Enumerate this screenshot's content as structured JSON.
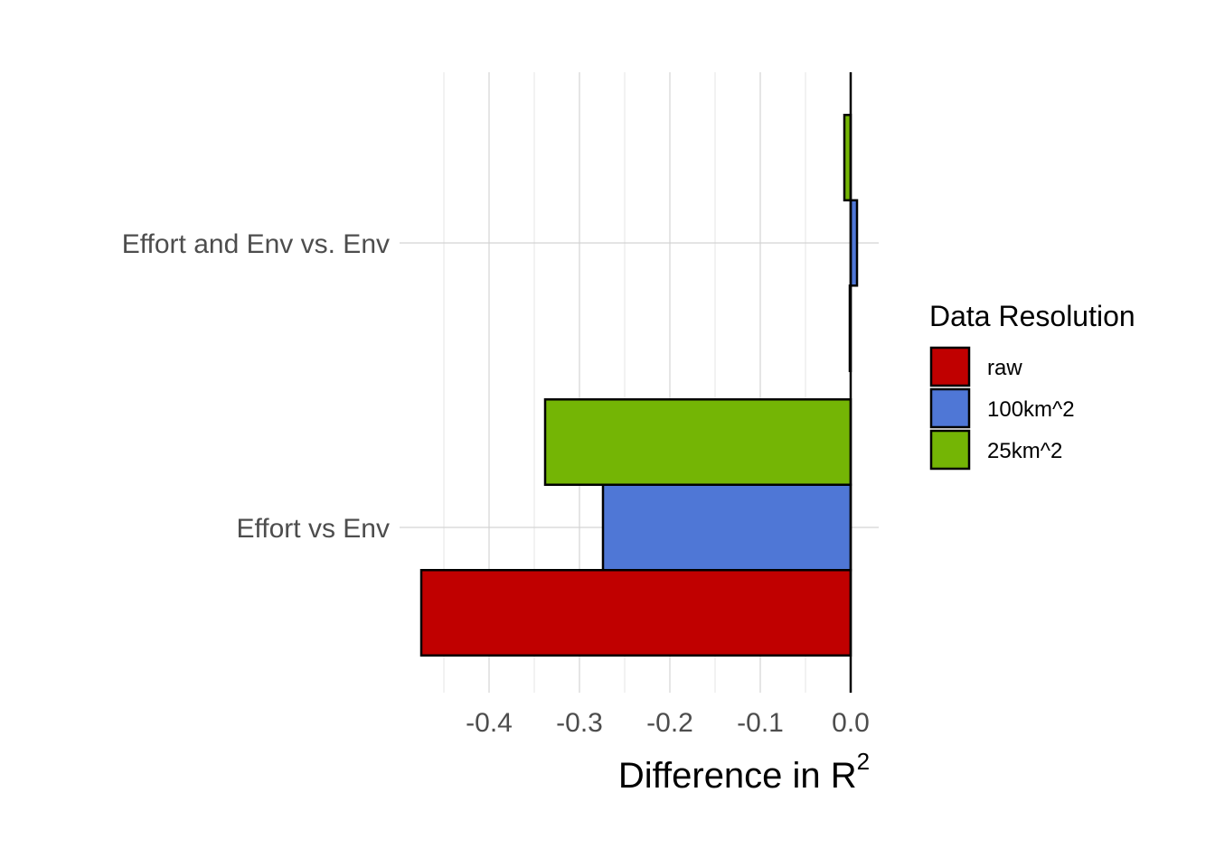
{
  "chart_data": {
    "type": "bar",
    "orientation": "horizontal",
    "categories": [
      "Effort vs Env",
      "Effort and Env vs. Env"
    ],
    "series": [
      {
        "name": "raw",
        "color": "#c00000",
        "values": [
          -0.475,
          -0.001
        ]
      },
      {
        "name": "100km^2",
        "color": "#4f77d6",
        "values": [
          -0.274,
          0.007
        ]
      },
      {
        "name": "25km^2",
        "color": "#74b505",
        "values": [
          -0.338,
          -0.007
        ]
      }
    ],
    "x_ticks": [
      "-0.4",
      "-0.3",
      "-0.2",
      "-0.1",
      "0.0"
    ],
    "x_tick_values": [
      -0.4,
      -0.3,
      -0.2,
      -0.1,
      0.0
    ],
    "xlabel_main": "Difference in R",
    "xlabel_sup": "2",
    "xlim": [
      -0.5,
      0.03
    ],
    "legend": {
      "title": "Data Resolution",
      "position": "right"
    },
    "grid": true,
    "bar_outline": "#000000"
  }
}
